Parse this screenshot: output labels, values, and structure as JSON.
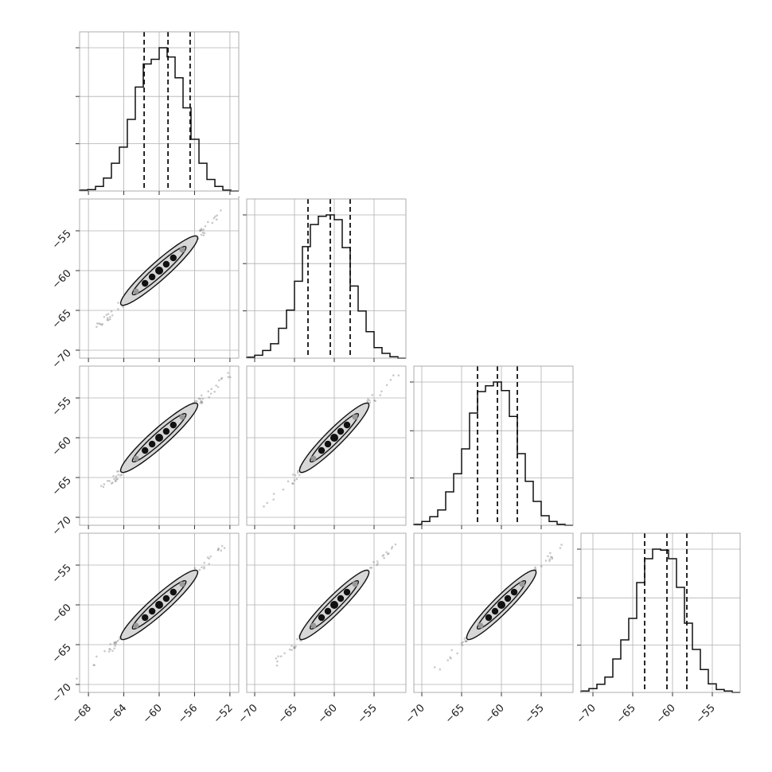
{
  "chart_data": {
    "type": "corner",
    "dims": 4,
    "grid": true,
    "title": "",
    "ranges": [
      [
        -69,
        -51
      ],
      [
        -71,
        -51
      ],
      [
        -71,
        -51
      ],
      [
        -71.5,
        -51.5
      ]
    ],
    "x_ticks": [
      [
        -68,
        -64,
        -60,
        -56,
        -52
      ],
      [
        -70,
        -65,
        -60,
        -55
      ],
      [
        -70,
        -65,
        -60,
        -55
      ],
      [
        -70,
        -65,
        -60,
        -55
      ]
    ],
    "y_ticks": [
      -55,
      -60,
      -65,
      -70
    ],
    "y_tick_range": [
      -71,
      -51
    ],
    "x_tick_labels": [
      [
        "−68",
        "−64",
        "−60",
        "−56",
        "−52"
      ],
      [
        "−70",
        "−65",
        "−60",
        "−55"
      ],
      [
        "−70",
        "−65",
        "−60",
        "−55"
      ],
      [
        "−70",
        "−65",
        "−60",
        "−55"
      ]
    ],
    "y_tick_labels": [
      "−55",
      "−60",
      "−65",
      "−70"
    ],
    "quantiles": [
      [
        -61.7,
        -59.0,
        -56.5
      ],
      [
        -63.3,
        -60.5,
        -58.0
      ],
      [
        -63.0,
        -60.5,
        -58.0
      ],
      [
        -63.5,
        -60.7,
        -58.2
      ]
    ],
    "histograms": [
      {
        "bin_start": -69,
        "bin_width": 0.9,
        "counts": [
          2,
          3,
          10,
          28,
          60,
          95,
          155,
          225,
          275,
          285,
          310,
          290,
          245,
          180,
          112,
          60,
          25,
          10,
          2,
          0
        ]
      },
      {
        "bin_start": -71,
        "bin_width": 1.0,
        "counts": [
          2,
          6,
          16,
          30,
          62,
          100,
          160,
          232,
          278,
          295,
          298,
          288,
          230,
          150,
          98,
          55,
          22,
          10,
          3,
          0
        ]
      },
      {
        "bin_start": -71,
        "bin_width": 1.0,
        "counts": [
          2,
          8,
          18,
          32,
          70,
          108,
          160,
          235,
          280,
          292,
          300,
          282,
          228,
          150,
          92,
          50,
          20,
          8,
          2,
          0
        ]
      },
      {
        "bin_start": -71.5,
        "bin_width": 1.0,
        "counts": [
          3,
          8,
          17,
          32,
          70,
          110,
          155,
          230,
          280,
          300,
          298,
          280,
          220,
          145,
          90,
          48,
          18,
          6,
          3,
          0
        ]
      }
    ],
    "contour_centers": [
      -60,
      -60,
      -60,
      -60
    ]
  }
}
